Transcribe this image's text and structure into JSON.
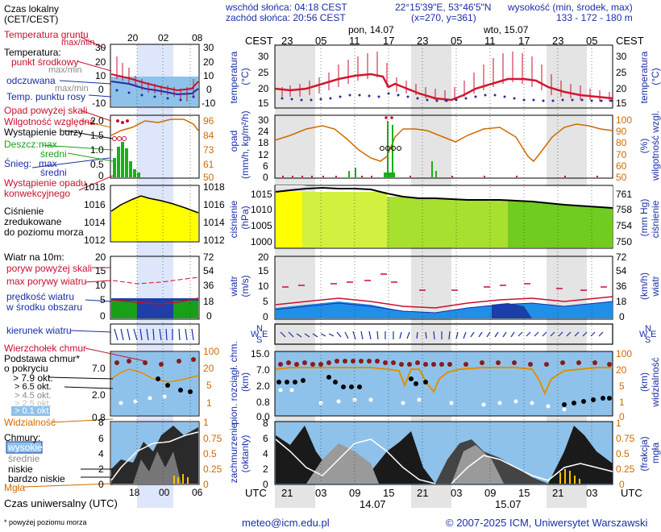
{
  "header": {
    "sunrise": "wschód słońca: 04:18 CEST",
    "sunset": "zachód słońca: 20:56 CEST",
    "coords": "22°15'39\"E, 53°46'5\"N",
    "grid": "(x=270, y=361)",
    "alt_title": "wysokość (min, środek, max)",
    "alt_values": "133 - 172 - 180 m",
    "day1": "pon, 14.07",
    "day2": "wto, 15.07",
    "cest": "CEST",
    "utc": "UTC"
  },
  "left": {
    "time_local": "Czas lokalny",
    "time_local2": "(CET/CEST)",
    "local_ticks": [
      "20",
      "02",
      "08"
    ],
    "utc_ticks": [
      "18",
      "00",
      "06"
    ],
    "utc_label": "Czas uniwersalny (UTC)",
    "footnote": "* powyżej poziomu morza",
    "temp": {
      "soil": "Temperatura gruntu",
      "maxmin": "max/min",
      "label": "Temperatura:",
      "mid": "punkt środkowy",
      "maxmin2": "max/min",
      "felt": "odczuwana",
      "maxmin3": "max/min",
      "dew": "Temp. punktu rosy",
      "left_ticks": [
        "30",
        "20",
        "10",
        "0",
        "-10"
      ],
      "right_ticks": [
        "30",
        "20",
        "10",
        "0",
        "-10"
      ]
    },
    "precip": {
      "over": "Opad powyżej skali",
      "humid": "Wilgotność względna",
      "storm": "Wystąpienie burzy",
      "rain": "Deszcz:",
      "rain_max": "max",
      "rain_mid": "średni",
      "snow": "Śnieg:",
      "snow_max": "max",
      "snow_mid": "średni",
      "occur1": "Wystąpienie opadu",
      "occur2": "konwekcyjnego",
      "left_ticks": [
        "2.0",
        "1.5",
        "1.0",
        "0.5",
        "0"
      ],
      "right_ticks": [
        "96",
        "84",
        "73",
        "61",
        "50"
      ]
    },
    "press": {
      "l1": "Ciśnienie",
      "l2": "zredukowane",
      "l3": "do poziomu morza",
      "left_ticks": [
        "1018",
        "1016",
        "1014",
        "1012"
      ],
      "right_ticks": [
        "1018",
        "1016",
        "1014",
        "1012"
      ]
    },
    "wind": {
      "title": "Wiatr na 10m:",
      "gust_over": "poryw powyżej skali",
      "gust_max": "max porywy wiatru",
      "speed1": "prędkość wiatru",
      "speed2": "w środku obszaru",
      "left_ticks": [
        "20",
        "15",
        "10",
        "5",
        "0"
      ],
      "right_ticks": [
        "72",
        "54",
        "36",
        "18",
        "0"
      ],
      "dir": "kierunek wiatru"
    },
    "cloud": {
      "top": "Wierzchołek chmur",
      "base1": "Podstawa chmur*",
      "base2": "o pokryciu",
      "o1": "> 7.9 okt.",
      "o2": "> 6.5 okt.",
      "o3": "> 4.5 okt.",
      "o4": "> 2.5 okt.",
      "o5": "> 0.1 okt.",
      "vis": "Widzialność",
      "left_ticks": [
        "7.0",
        "2.0",
        "0.8"
      ],
      "right_ticks": [
        "100",
        "20",
        "5",
        "1"
      ]
    },
    "cover": {
      "title": "Chmury:",
      "high": "wysokie",
      "mid": "średnie",
      "low": "niskie",
      "vlow": "bardzo niskie",
      "fog": "Mgła",
      "left_ticks": [
        "8",
        "6",
        "4",
        "2",
        "0"
      ],
      "right_ticks": [
        "1",
        "0.75",
        "0.5",
        "0.25",
        "0"
      ]
    }
  },
  "main": {
    "cest_ticks": [
      "23",
      "05",
      "11",
      "17",
      "23",
      "05",
      "11",
      "17",
      "23",
      "05"
    ],
    "utc_ticks": [
      "21",
      "03",
      "09",
      "15",
      "21",
      "03",
      "09",
      "15",
      "21",
      "03"
    ],
    "date1": "14.07",
    "date2": "15.07",
    "temp": {
      "l1": "temperatura",
      "l2": "(°C)",
      "r1": "temperatura",
      "r2": "(°C)",
      "ticks": [
        "30",
        "25",
        "20",
        "15"
      ]
    },
    "precip": {
      "l1": "opad",
      "l2": "(mm/h, kg/m²/h)",
      "r1": "wilgotność wzgl.",
      "r2": "(%)",
      "left_ticks": [
        "30",
        "24",
        "18",
        "12",
        "6",
        "0"
      ],
      "right_ticks": [
        "100",
        "90",
        "80",
        "70",
        "60",
        "50"
      ]
    },
    "press": {
      "l1": "ciśnienie",
      "l2": "(hPa)",
      "r1": "ciśnienie",
      "r2": "(mm Hg)",
      "left_ticks": [
        "1015",
        "1010",
        "1005",
        "1000"
      ],
      "right_ticks": [
        "761",
        "758",
        "754",
        "750"
      ]
    },
    "wind": {
      "l1": "wiatr",
      "l2": "(m/s)",
      "r1": "wiatr",
      "r2": "(km/h)",
      "left_ticks": [
        "20",
        "15",
        "10",
        "5",
        "0"
      ],
      "right_ticks": [
        "72",
        "54",
        "36",
        "18",
        "0"
      ]
    },
    "cloud": {
      "l1": "pion. rozciągł. chm.",
      "l2": "(km)",
      "r1": "widzialność",
      "r2": "(km)",
      "left_ticks": [
        "15.0",
        "7.0",
        "2.0",
        "0.8",
        "0.0"
      ],
      "right_ticks": [
        "100",
        "20",
        "5",
        "1",
        "0"
      ]
    },
    "cover": {
      "l1": "zachmurzenie",
      "l2": "(oktanty)",
      "r1": "mgła",
      "r2": "(frakcja)",
      "left_ticks": [
        "8",
        "6",
        "4",
        "2",
        "0"
      ],
      "right_ticks": [
        "1",
        "0.75",
        "0.5",
        "0.25",
        "0"
      ]
    },
    "compass": {
      "n": "N",
      "w": "W",
      "e": "E",
      "s": "S"
    }
  },
  "footer": {
    "email": "meteo@icm.edu.pl",
    "copyright": "© 2007-2025 ICM, Uniwersytet Warszawski"
  },
  "colors": {
    "grid_blue": "#1a2ea8",
    "red": "#c8102e",
    "orange": "#d06a00",
    "yellow": "#ffff00",
    "sky": "#87c0ea"
  }
}
